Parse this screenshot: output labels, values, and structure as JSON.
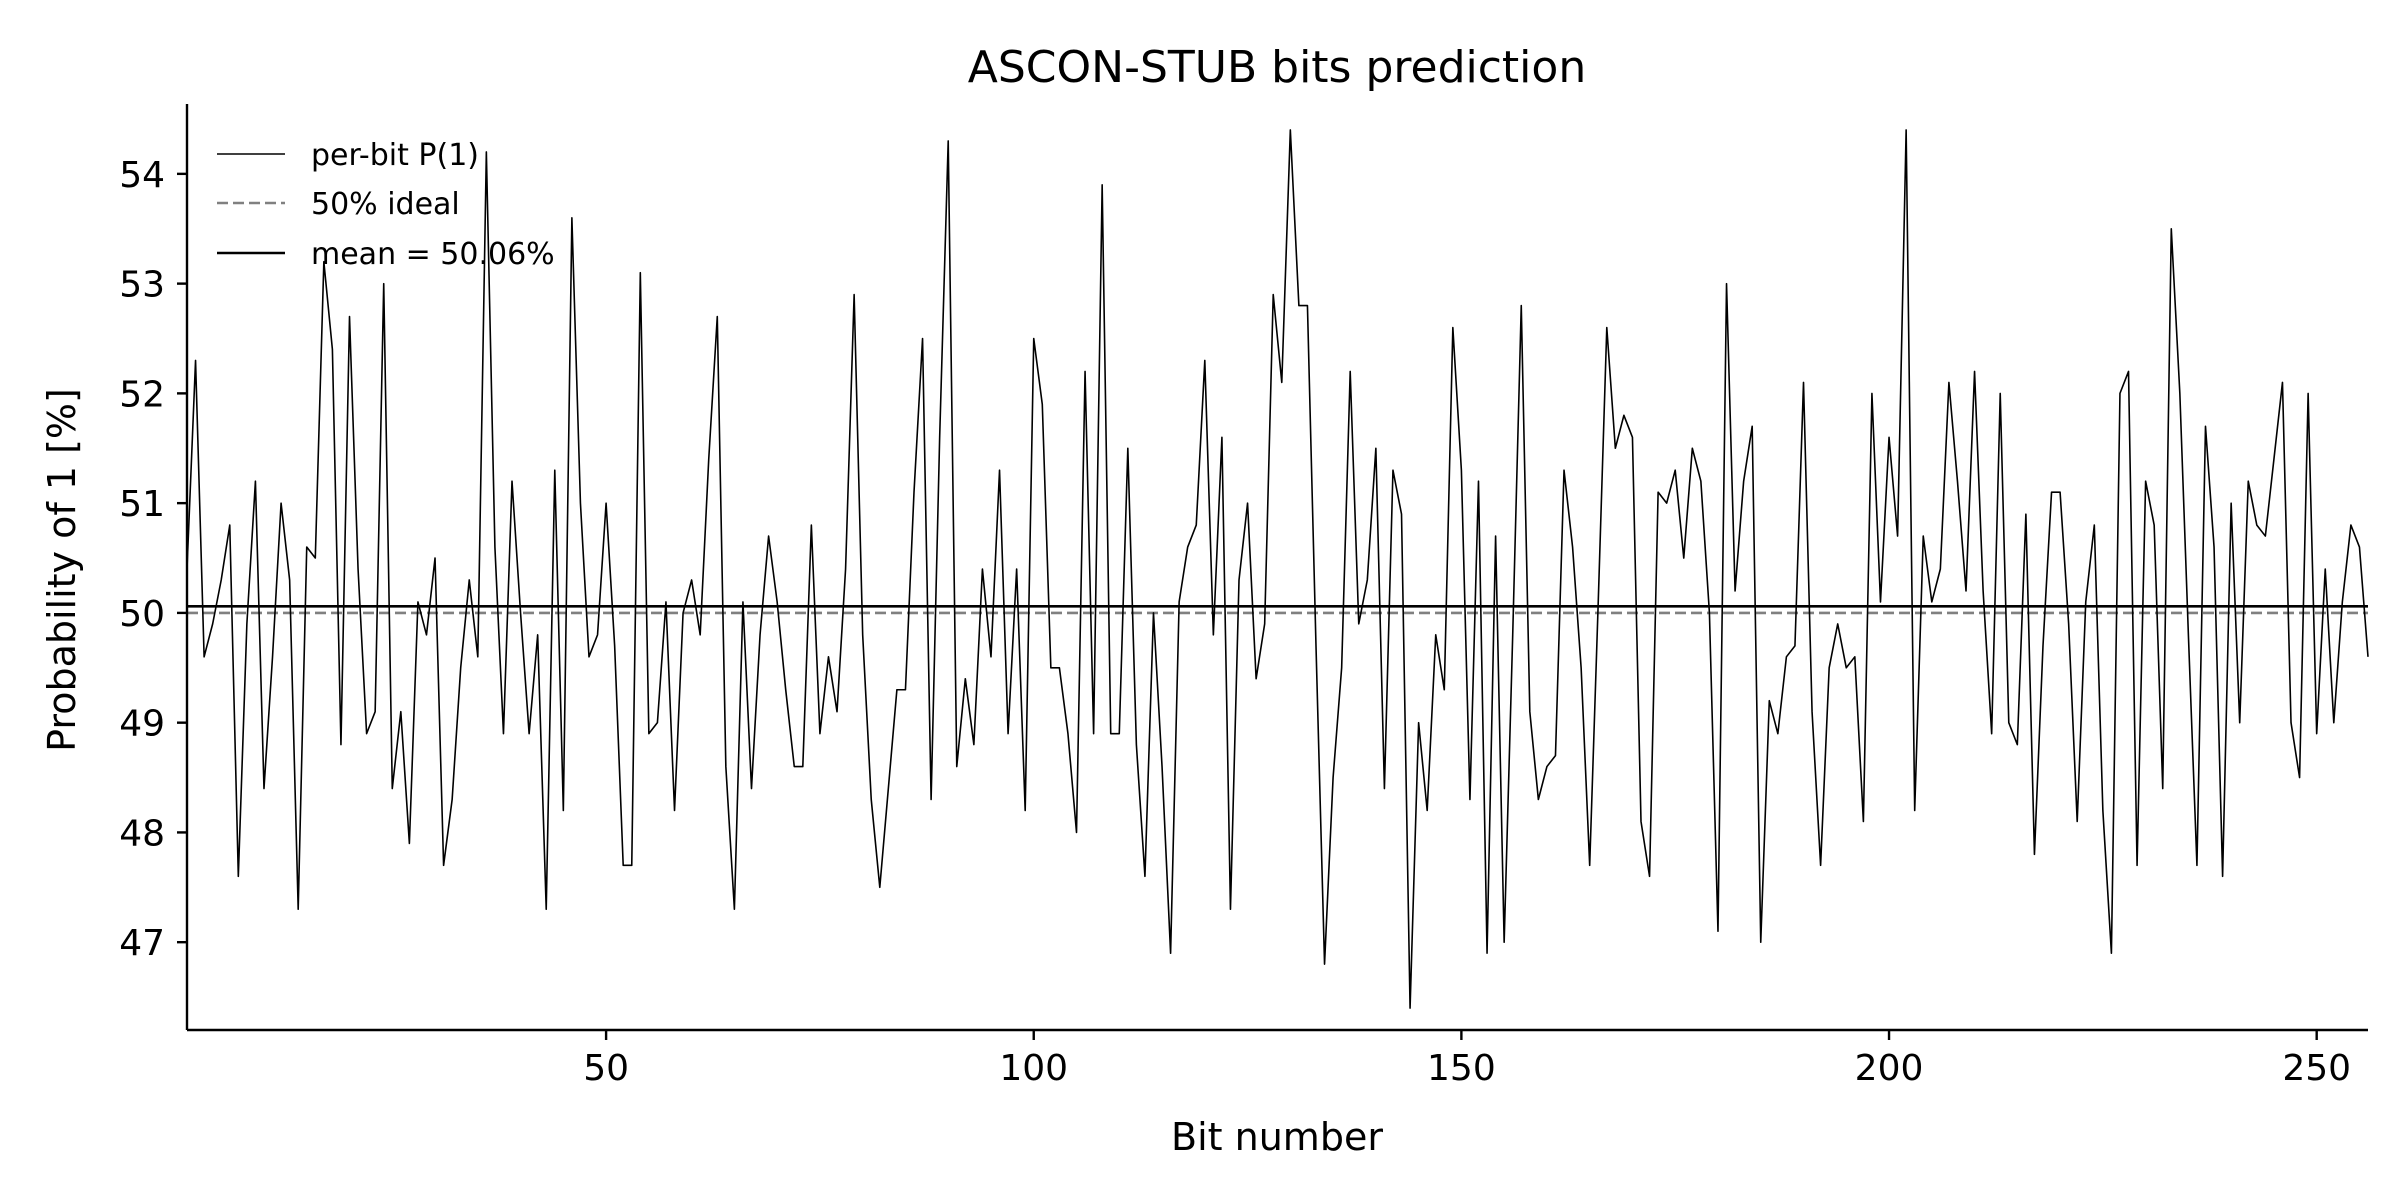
{
  "chart_data": {
    "type": "line",
    "title": "ASCON-STUB bits prediction",
    "xlabel": "Bit number",
    "ylabel": "Probability of 1 [%]",
    "xlim": [
      1,
      256
    ],
    "ylim": [
      46.2,
      54.6
    ],
    "xticks": [
      50,
      100,
      150,
      200,
      250
    ],
    "yticks": [
      47,
      48,
      49,
      50,
      51,
      52,
      53,
      54
    ],
    "grid": false,
    "legend_position": "top-left",
    "series": [
      {
        "name": "per-bit P(1)",
        "style": "solid-thin",
        "color": "#000000",
        "x_start": 1,
        "values": [
          50.4,
          52.3,
          49.6,
          49.9,
          50.3,
          50.8,
          47.6,
          49.9,
          51.2,
          48.4,
          49.6,
          51.0,
          50.3,
          47.3,
          50.6,
          50.5,
          53.2,
          52.4,
          48.8,
          52.7,
          50.4,
          48.9,
          49.1,
          53.0,
          48.4,
          49.1,
          47.9,
          50.1,
          49.8,
          50.5,
          47.7,
          48.3,
          49.5,
          50.3,
          49.6,
          54.2,
          50.6,
          48.9,
          51.2,
          50.0,
          48.9,
          49.8,
          47.3,
          51.3,
          48.2,
          53.6,
          51.0,
          49.6,
          49.8,
          51.0,
          49.7,
          47.7,
          47.7,
          53.1,
          48.9,
          49.0,
          50.1,
          48.2,
          50.0,
          50.3,
          49.8,
          51.4,
          52.7,
          48.6,
          47.3,
          50.1,
          48.4,
          49.8,
          50.7,
          50.1,
          49.3,
          48.6,
          48.6,
          50.8,
          48.9,
          49.6,
          49.1,
          50.4,
          52.9,
          49.8,
          48.3,
          47.5,
          48.4,
          49.3,
          49.3,
          51.1,
          52.5,
          48.3,
          51.6,
          54.3,
          48.6,
          49.4,
          48.8,
          50.4,
          49.6,
          51.3,
          48.9,
          50.4,
          48.2,
          52.5,
          51.9,
          49.5,
          49.5,
          48.9,
          48.0,
          52.2,
          48.9,
          53.9,
          48.9,
          48.9,
          51.5,
          48.8,
          47.6,
          50.0,
          48.6,
          46.9,
          50.1,
          50.6,
          50.8,
          52.3,
          49.8,
          51.6,
          47.3,
          50.3,
          51.0,
          49.4,
          49.9,
          52.9,
          52.1,
          54.4,
          52.8,
          52.8,
          49.7,
          46.8,
          48.5,
          49.5,
          52.2,
          49.9,
          50.3,
          51.5,
          48.4,
          51.3,
          50.9,
          46.4,
          49.0,
          48.2,
          49.8,
          49.3,
          52.6,
          51.3,
          48.3,
          51.2,
          46.9,
          50.7,
          47.0,
          49.8,
          52.8,
          49.1,
          48.3,
          48.6,
          48.7,
          51.3,
          50.6,
          49.5,
          47.7,
          50.1,
          52.6,
          51.5,
          51.8,
          51.6,
          48.1,
          47.6,
          51.1,
          51.0,
          51.3,
          50.5,
          51.5,
          51.2,
          50.0,
          47.1,
          53.0,
          50.2,
          51.2,
          51.7,
          47.0,
          49.2,
          48.9,
          49.6,
          49.7,
          52.1,
          49.1,
          47.7,
          49.5,
          49.9,
          49.5,
          49.6,
          48.1,
          52.0,
          50.1,
          51.6,
          50.7,
          54.4,
          48.2,
          50.7,
          50.1,
          50.4,
          52.1,
          51.2,
          50.2,
          52.2,
          50.2,
          48.9,
          52.0,
          49.0,
          48.8,
          50.9,
          47.8,
          49.7,
          51.1,
          51.1,
          49.9,
          48.1,
          50.1,
          50.8,
          48.2,
          46.9,
          52.0,
          52.2,
          47.7,
          51.2,
          50.8,
          48.4,
          53.5,
          52.0,
          49.8,
          47.7,
          51.7,
          50.6,
          47.6,
          51.0,
          49.0,
          51.2,
          50.8,
          50.7,
          51.4,
          52.1,
          49.0,
          48.5,
          52.0,
          48.9,
          50.4,
          49.0,
          50.1,
          50.8,
          50.6,
          49.6
        ]
      },
      {
        "name": "50% ideal",
        "style": "dashed",
        "color": "#808080",
        "constant": 50.0
      },
      {
        "name": "mean = 50.06%",
        "style": "solid",
        "color": "#000000",
        "constant": 50.06
      }
    ]
  }
}
